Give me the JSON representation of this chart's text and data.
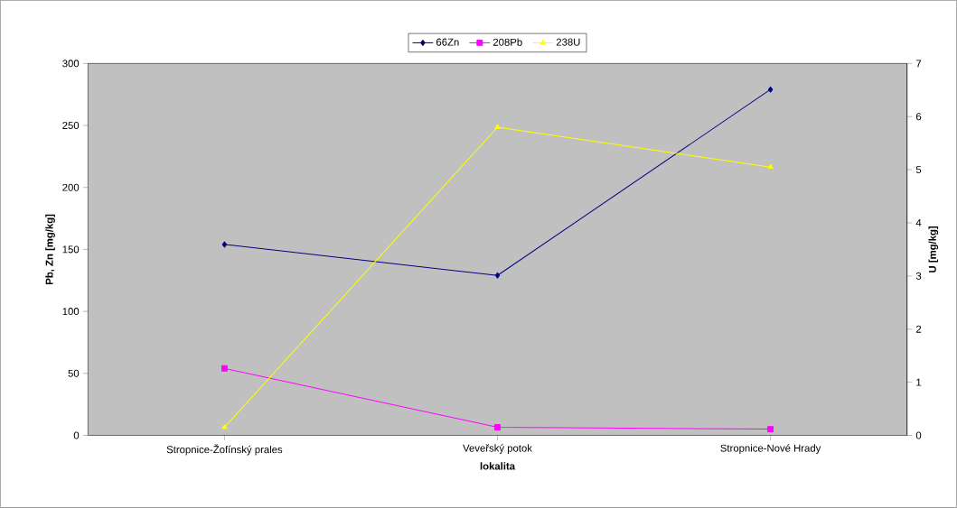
{
  "chart_data": {
    "type": "line",
    "categories": [
      "Stropnice-Žofínský prales",
      "Veveřský potok",
      "Stropnice-Nové Hrady"
    ],
    "xlabel": "lokalita",
    "ylabel": "Pb, Zn [mg/kg]",
    "y2label": "U [mg/kg]",
    "series": [
      {
        "name": "66Zn",
        "color": "#000080",
        "marker": "diamond",
        "values": [
          154,
          129,
          279
        ]
      },
      {
        "name": "208Pb",
        "color": "#ff00ff",
        "marker": "square",
        "values": [
          54,
          6.5,
          5
        ]
      },
      {
        "name": "238U",
        "color": "#ffff00",
        "marker": "triangle",
        "axis": "y2",
        "values": [
          0.15,
          5.8,
          5.05
        ]
      }
    ],
    "ylim": [
      0,
      300
    ],
    "yticks": [
      0,
      50,
      100,
      150,
      200,
      250,
      300
    ],
    "y2lim": [
      0,
      7
    ],
    "y2ticks": [
      0,
      1,
      2,
      3,
      4,
      5,
      6,
      7
    ],
    "legend": "top"
  }
}
